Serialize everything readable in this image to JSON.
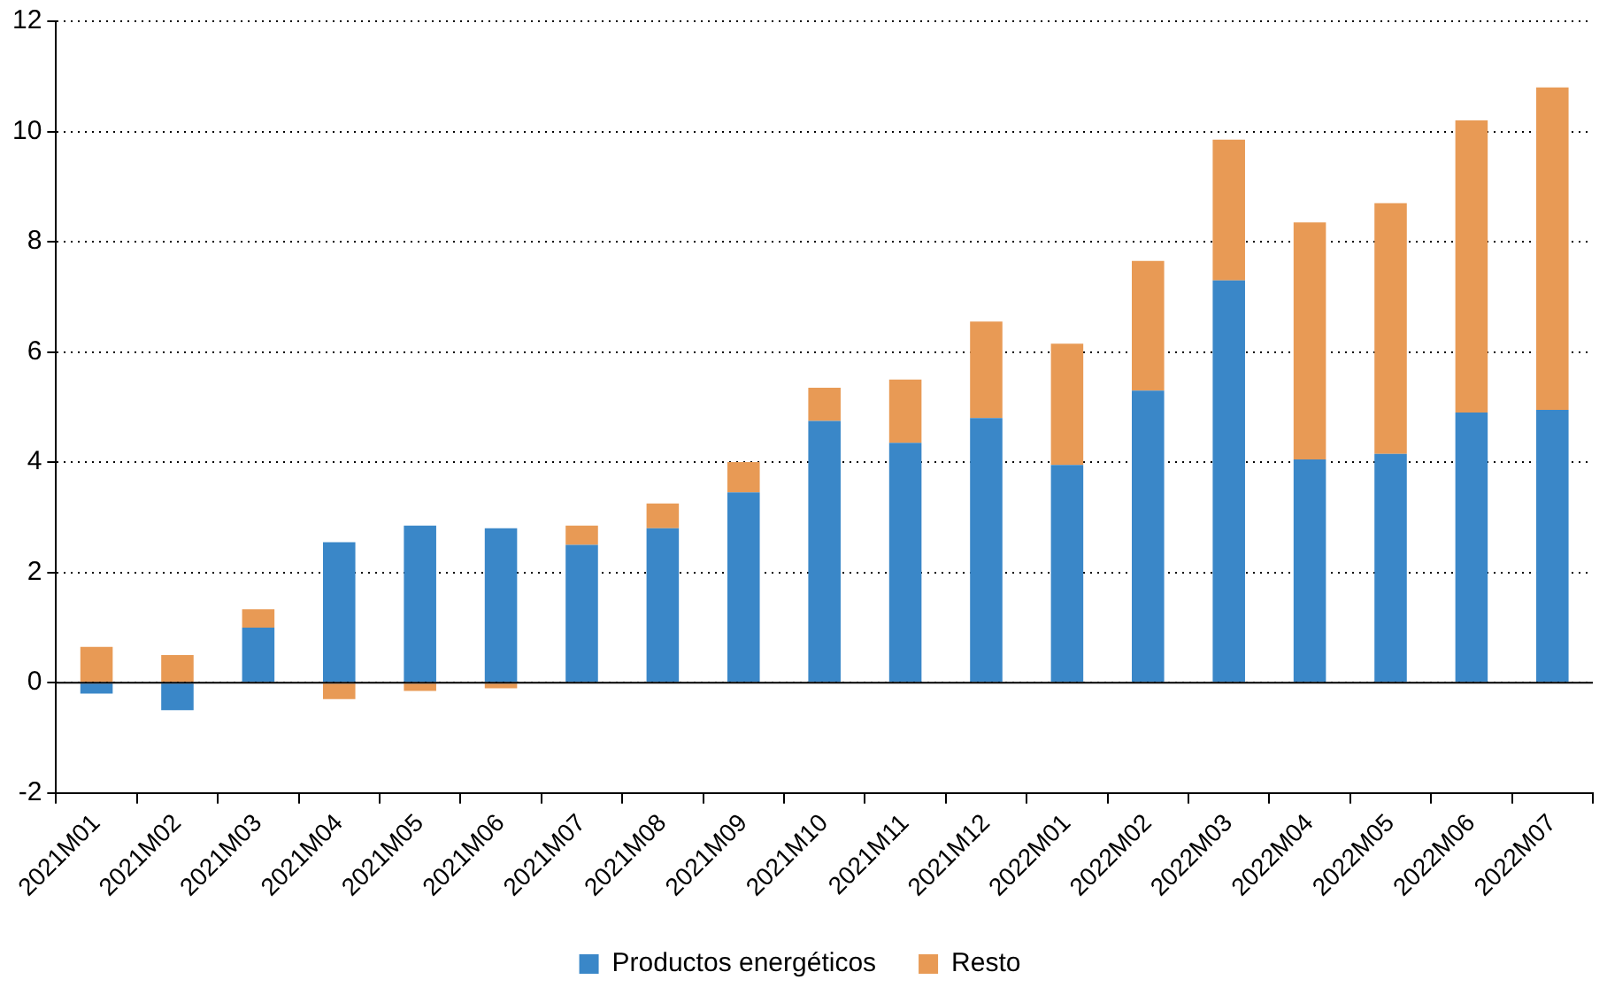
{
  "chart_data": {
    "type": "bar",
    "stacked": true,
    "categories": [
      "2021M01",
      "2021M02",
      "2021M03",
      "2021M04",
      "2021M05",
      "2021M06",
      "2021M07",
      "2021M08",
      "2021M09",
      "2021M10",
      "2021M11",
      "2021M12",
      "2022M01",
      "2022M02",
      "2022M03",
      "2022M04",
      "2022M05",
      "2022M06",
      "2022M07"
    ],
    "series": [
      {
        "name": "Productos energéticos",
        "color": "#3a87c8",
        "values": [
          -0.2,
          -0.5,
          1.0,
          2.55,
          2.85,
          2.8,
          2.5,
          2.8,
          3.45,
          4.75,
          4.35,
          4.8,
          3.95,
          5.3,
          7.3,
          4.05,
          4.15,
          4.9,
          4.95
        ]
      },
      {
        "name": "Resto",
        "color": "#e89a55",
        "values": [
          0.65,
          0.5,
          0.33,
          -0.3,
          -0.15,
          -0.1,
          0.35,
          0.45,
          0.55,
          0.6,
          1.15,
          1.75,
          2.2,
          2.35,
          2.55,
          4.3,
          4.55,
          5.3,
          5.85
        ]
      }
    ],
    "ylim": [
      -2,
      12
    ],
    "yticks": [
      -2,
      0,
      2,
      4,
      6,
      8,
      10,
      12
    ],
    "grid": "y",
    "legend": "bottom"
  }
}
